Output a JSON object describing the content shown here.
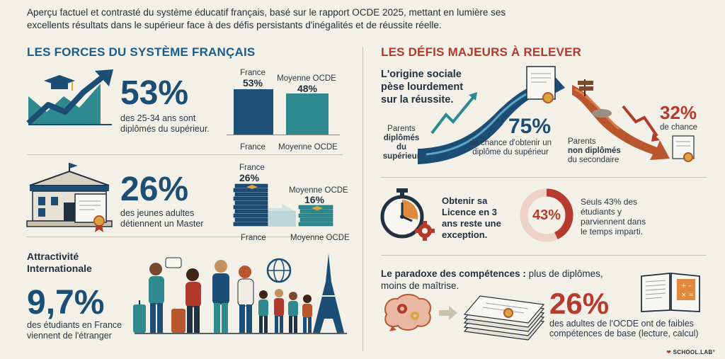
{
  "intro": "Aperçu factuel et contrasté du système éducatif français, basé sur le rapport OCDE 2025, mettant en lumière ses excellents résultats dans le supérieur face à des défis persistants d'inégalités et de réussite réelle.",
  "left": {
    "heading": "LES FORCES DU SYSTÈME FRANÇAIS",
    "stat1": {
      "value": "53%",
      "caption": "des 25-34 ans sont diplômés du supérieur."
    },
    "bars": {
      "france_label": "France",
      "france_value": "53%",
      "oecd_label": "Moyenne OCDE",
      "oecd_value": "48%",
      "france_axis": "France",
      "oecd_axis": "Moyenne OCDE"
    },
    "stat2": {
      "value": "26%",
      "caption": "des jeunes adultes détiennent un Master"
    },
    "stacks": {
      "france_label": "France",
      "france_value": "26%",
      "oecd_label": "Moyenne OCDE",
      "oecd_value": "16%",
      "france_axis": "France",
      "oecd_axis": "Moyenne OCDE"
    },
    "stat3": {
      "title": "Attractivité Internationale",
      "value": "9,7%",
      "caption": "des étudiants en France viennent de l'étranger"
    }
  },
  "right": {
    "heading": "LES DÉFIS MAJEURS À RELEVER",
    "origin": {
      "title": "L'origine sociale pèse lourdement sur la réussite.",
      "parents_grad_1": "Parents",
      "parents_grad_2": "diplômés du supérieur",
      "up_value": "75%",
      "up_caption": "de chance d'obtenir un diplôme du supérieur",
      "parents_non_1": "Parents",
      "parents_non_2": "non diplômés",
      "parents_non_3": "du secondaire",
      "down_value": "32%",
      "down_caption": "de chance"
    },
    "licence": {
      "title": "Obtenir sa Licence en 3 ans reste une exception.",
      "ring_value": "43%",
      "ring_fraction": 0.43,
      "caption": "Seuls 43% des étudiants y parviennent dans le temps imparti."
    },
    "paradox": {
      "title_bold": "Le paradoxe des compétences :",
      "title_rest": " plus de diplômes, moins de maîtrise.",
      "value": "26%",
      "caption": "des adultes de l'OCDE ont de faibles compétences de base (lecture, calcul)"
    }
  },
  "footer": {
    "brand": "SCHOOL.LAB°"
  },
  "colors": {
    "blue_dark": "#1c4d75",
    "teal": "#2f8a8f",
    "red": "#b73a2e",
    "cream": "#f3f0e7"
  }
}
